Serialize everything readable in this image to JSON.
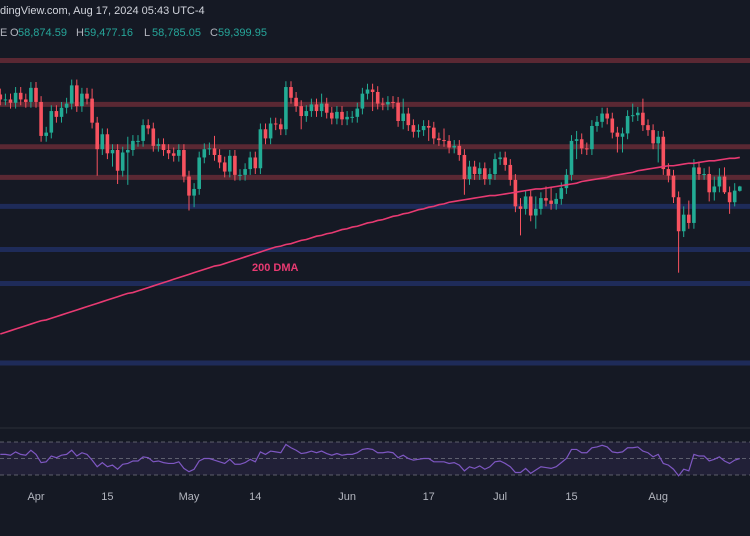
{
  "header": {
    "source": "dingView.com, Aug 17, 2024 05:43 UTC-4",
    "symbol": "E",
    "ohlc": [
      {
        "label": "O",
        "value": "58,874.59"
      },
      {
        "label": "H",
        "value": "59,477.16"
      },
      {
        "label": "L",
        "value": "58,785.05"
      },
      {
        "label": "C",
        "value": "59,399.95"
      }
    ]
  },
  "chart_data": [
    {
      "type": "candlestick",
      "categories": [
        null,
        null,
        null,
        null,
        null,
        null,
        null,
        "Apr",
        null,
        null,
        null,
        null,
        null,
        null,
        null,
        null,
        null,
        null,
        null,
        null,
        null,
        "15",
        null,
        null,
        null,
        null,
        null,
        null,
        null,
        null,
        null,
        null,
        null,
        null,
        null,
        null,
        null,
        "May",
        null,
        null,
        null,
        null,
        null,
        null,
        null,
        null,
        null,
        null,
        null,
        null,
        "14",
        null,
        null,
        null,
        null,
        null,
        null,
        null,
        null,
        null,
        null,
        null,
        null,
        null,
        null,
        null,
        null,
        null,
        "Jun",
        null,
        null,
        null,
        null,
        null,
        null,
        null,
        null,
        null,
        null,
        null,
        null,
        null,
        null,
        null,
        "17",
        null,
        null,
        null,
        null,
        null,
        null,
        null,
        null,
        null,
        null,
        null,
        null,
        null,
        "Jul",
        null,
        null,
        null,
        null,
        null,
        null,
        null,
        null,
        null,
        null,
        null,
        null,
        null,
        "15",
        null,
        null,
        null,
        null,
        null,
        null,
        null,
        null,
        null,
        null,
        null,
        null,
        null,
        null,
        null,
        null,
        "Aug",
        null,
        null,
        null,
        null,
        null,
        null,
        null,
        null,
        null,
        null,
        null,
        null,
        null,
        null,
        null,
        null
      ],
      "open": [
        70500,
        69900,
        69900,
        69500,
        70700,
        69900,
        69600,
        71300,
        69600,
        65500,
        65900,
        68500,
        67800,
        68900,
        69400,
        71600,
        69100,
        70600,
        70000,
        67100,
        63900,
        65700,
        63400,
        63800,
        61300,
        63500,
        63800,
        64900,
        64900,
        66800,
        66400,
        64300,
        64500,
        63800,
        63400,
        63100,
        63800,
        60600,
        58300,
        59100,
        62900,
        63900,
        64000,
        63200,
        62300,
        61200,
        63100,
        60800,
        60800,
        61500,
        62900,
        61600,
        66300,
        65200,
        67000,
        66900,
        66300,
        71400,
        70100,
        69100,
        67900,
        68500,
        69300,
        68500,
        69400,
        68300,
        67600,
        68400,
        67500,
        67800,
        67800,
        68800,
        70600,
        71100,
        70800,
        69400,
        69300,
        69600,
        69500,
        67300,
        68200,
        66800,
        66000,
        66200,
        66700,
        66500,
        65200,
        65000,
        64900,
        64100,
        64300,
        63200,
        60300,
        61800,
        60900,
        61600,
        60300,
        60900,
        62700,
        62900,
        62000,
        60200,
        57000,
        56700,
        58200,
        55900,
        56700,
        58000,
        57700,
        57300,
        57900,
        59200,
        60800,
        64900,
        65100,
        64000,
        63900,
        66700,
        67200,
        68200,
        67600,
        65900,
        65400,
        65800,
        67900,
        68000,
        68300,
        66800,
        66200,
        64600,
        65400,
        61500,
        60700,
        58100,
        54000,
        56000,
        55000,
        61700,
        60900,
        60900,
        58700,
        59400,
        60600,
        58700,
        57500,
        58874.59
      ],
      "high": [
        71200,
        70600,
        70600,
        71400,
        71400,
        70600,
        72000,
        72000,
        70300,
        66600,
        69200,
        69200,
        69600,
        70100,
        72300,
        72300,
        71300,
        71300,
        71200,
        67800,
        66400,
        66400,
        64500,
        64500,
        64200,
        65400,
        65600,
        65600,
        67500,
        67500,
        67100,
        65200,
        65200,
        64500,
        64100,
        64500,
        64500,
        61300,
        59800,
        63600,
        64600,
        64700,
        65500,
        63900,
        63000,
        63800,
        63800,
        61500,
        62200,
        63600,
        63600,
        67000,
        67000,
        67700,
        67700,
        67600,
        72100,
        72100,
        70800,
        69800,
        69200,
        70000,
        70000,
        70600,
        70100,
        69000,
        69100,
        69100,
        68500,
        68500,
        69500,
        71300,
        71800,
        71800,
        71500,
        70100,
        70300,
        70300,
        70200,
        70000,
        68900,
        67500,
        66900,
        67400,
        67400,
        67200,
        65900,
        66400,
        65600,
        65000,
        65000,
        63900,
        62500,
        62500,
        62300,
        62300,
        61600,
        63400,
        63600,
        63600,
        62700,
        60900,
        58000,
        58900,
        58900,
        58200,
        58700,
        59400,
        59300,
        58600,
        59900,
        61500,
        65600,
        66100,
        65800,
        64700,
        67400,
        67900,
        68900,
        68900,
        68300,
        66600,
        66500,
        68600,
        69400,
        69000,
        70000,
        67500,
        66900,
        66100,
        66100,
        62200,
        61400,
        58800,
        57000,
        57700,
        62700,
        62400,
        61600,
        61800,
        60600,
        61600,
        61700,
        59400,
        59800,
        59477.16
      ],
      "low": [
        69200,
        69200,
        68800,
        68800,
        69200,
        68900,
        68900,
        68900,
        64800,
        64800,
        65200,
        67100,
        67100,
        68200,
        68700,
        68400,
        68400,
        69300,
        66400,
        60700,
        63200,
        62700,
        61800,
        59700,
        60600,
        59600,
        63100,
        64200,
        64200,
        65700,
        63600,
        63600,
        63100,
        62700,
        62400,
        62400,
        59900,
        56500,
        56900,
        58400,
        62200,
        63200,
        62500,
        61600,
        60500,
        60500,
        60100,
        60100,
        60100,
        60800,
        60900,
        60900,
        64500,
        64500,
        66200,
        65600,
        65600,
        69400,
        68400,
        66300,
        67200,
        67800,
        67800,
        67800,
        67600,
        66900,
        66900,
        66800,
        66800,
        67100,
        67100,
        68100,
        69900,
        68500,
        68700,
        68600,
        68600,
        68800,
        66600,
        66300,
        66100,
        65300,
        65300,
        65500,
        64900,
        64500,
        64300,
        64200,
        63400,
        63400,
        62500,
        58400,
        59600,
        60200,
        60200,
        59600,
        59600,
        60200,
        62000,
        61300,
        59500,
        56300,
        53500,
        56000,
        55200,
        54300,
        56000,
        57000,
        56600,
        56600,
        57200,
        58500,
        60100,
        62700,
        63300,
        63200,
        63200,
        66000,
        66500,
        66900,
        65200,
        63500,
        63500,
        65100,
        67200,
        67300,
        66100,
        65500,
        63900,
        62300,
        60800,
        59900,
        57400,
        49000,
        53300,
        54300,
        54300,
        60200,
        60200,
        57600,
        57700,
        58700,
        58500,
        56100,
        57000,
        58785.05
      ],
      "close": [
        69900,
        69900,
        69500,
        70700,
        69900,
        69600,
        71300,
        69600,
        65500,
        65900,
        68500,
        67800,
        68900,
        69400,
        71600,
        69100,
        70600,
        70000,
        67100,
        63900,
        65700,
        63400,
        63800,
        61300,
        63500,
        63800,
        64900,
        64900,
        66800,
        66400,
        64300,
        64500,
        63800,
        63400,
        63100,
        63800,
        60600,
        58300,
        59100,
        62900,
        63900,
        64000,
        63200,
        62300,
        61200,
        63100,
        60800,
        60800,
        61500,
        62900,
        61600,
        66300,
        65200,
        67000,
        66900,
        66300,
        71400,
        70100,
        69100,
        67900,
        68500,
        69300,
        68500,
        69400,
        68300,
        67600,
        68400,
        67500,
        67800,
        67800,
        68800,
        70600,
        71100,
        70800,
        69400,
        69300,
        69600,
        69500,
        67300,
        68200,
        66800,
        66000,
        66200,
        66700,
        66500,
        65200,
        65000,
        64900,
        64100,
        64300,
        63200,
        60300,
        61800,
        60900,
        61600,
        60300,
        60900,
        62700,
        62900,
        62000,
        60200,
        57000,
        56700,
        58200,
        55900,
        56700,
        58000,
        57700,
        57300,
        57900,
        59200,
        60800,
        64900,
        65100,
        64000,
        63900,
        66700,
        67200,
        68200,
        67600,
        65900,
        65400,
        65800,
        67900,
        68000,
        68300,
        66800,
        66200,
        64600,
        65400,
        61500,
        60700,
        58100,
        54000,
        56000,
        55000,
        61700,
        60900,
        60900,
        58700,
        59400,
        60600,
        58700,
        57500,
        58900,
        59399.95
      ],
      "up_color": "#22ab94",
      "down_color": "#f7525f",
      "series": [
        {
          "name": "200 DMA",
          "color": "#e83a72",
          "values": [
            41600,
            41800,
            42000,
            42200,
            42400,
            42600,
            42800,
            43000,
            43200,
            43300,
            43500,
            43700,
            43900,
            44100,
            44300,
            44500,
            44700,
            44900,
            45100,
            45300,
            45500,
            45700,
            45900,
            46100,
            46300,
            46500,
            46600,
            46800,
            47000,
            47200,
            47400,
            47600,
            47800,
            48000,
            48200,
            48400,
            48600,
            48800,
            49000,
            49200,
            49400,
            49600,
            49800,
            49900,
            50100,
            50300,
            50500,
            50700,
            50900,
            51100,
            51300,
            51500,
            51700,
            51900,
            52100,
            52200,
            52400,
            52500,
            52700,
            52900,
            53000,
            53200,
            53400,
            53500,
            53700,
            53800,
            54000,
            54200,
            54300,
            54500,
            54600,
            54800,
            55000,
            55100,
            55300,
            55400,
            55600,
            55800,
            55900,
            56100,
            56200,
            56400,
            56600,
            56700,
            56900,
            57000,
            57200,
            57300,
            57500,
            57600,
            57700,
            57800,
            57900,
            58000,
            58100,
            58200,
            58300,
            58300,
            58400,
            58500,
            58600,
            58700,
            58800,
            58900,
            59000,
            59100,
            59100,
            59200,
            59300,
            59400,
            59500,
            59600,
            59700,
            59800,
            60000,
            60100,
            60200,
            60300,
            60400,
            60500,
            60700,
            60800,
            60900,
            61000,
            61100,
            61300,
            61400,
            61500,
            61600,
            61700,
            61800,
            61900,
            61900,
            62000,
            62100,
            62200,
            62200,
            62300,
            62400,
            62500,
            62500,
            62600,
            62700,
            62800,
            62800,
            62900
          ]
        }
      ],
      "levels": [
        {
          "value": 74600,
          "color": "#5a2833"
        },
        {
          "value": 69300,
          "color": "#5a2833"
        },
        {
          "value": 64200,
          "color": "#5a2833"
        },
        {
          "value": 60500,
          "color": "#5a2833"
        },
        {
          "value": 57000,
          "color": "#1e2b59"
        },
        {
          "value": 51800,
          "color": "#1e2b59"
        },
        {
          "value": 47700,
          "color": "#1e2b59"
        },
        {
          "value": 38100,
          "color": "#1e2b59"
        }
      ],
      "ylim": [
        30500,
        81900
      ]
    },
    {
      "type": "line",
      "color": "#7e57c2",
      "values": [
        55,
        55,
        54,
        58,
        55,
        54,
        60,
        55,
        45,
        46,
        53,
        51,
        54,
        55,
        60,
        53,
        57,
        55,
        48,
        40,
        45,
        40,
        42,
        37,
        43,
        44,
        47,
        47,
        52,
        51,
        46,
        47,
        45,
        44,
        44,
        46,
        38,
        34,
        37,
        47,
        50,
        50,
        48,
        46,
        44,
        49,
        43,
        43,
        45,
        49,
        46,
        58,
        55,
        59,
        58,
        57,
        67,
        63,
        60,
        56,
        57,
        59,
        57,
        59,
        56,
        54,
        56,
        54,
        55,
        55,
        57,
        61,
        62,
        61,
        57,
        57,
        58,
        57,
        51,
        54,
        50,
        48,
        49,
        50,
        50,
        46,
        46,
        46,
        44,
        45,
        42,
        35,
        40,
        38,
        41,
        37,
        40,
        46,
        47,
        44,
        40,
        33,
        33,
        38,
        32,
        36,
        40,
        39,
        38,
        40,
        45,
        50,
        61,
        61,
        57,
        57,
        63,
        64,
        66,
        64,
        58,
        57,
        58,
        63,
        63,
        64,
        59,
        57,
        52,
        55,
        44,
        42,
        37,
        29,
        37,
        35,
        55,
        53,
        53,
        47,
        49,
        52,
        47,
        44,
        48,
        50
      ],
      "hlines": [
        70,
        50,
        30
      ],
      "ylim": [
        10,
        90
      ]
    }
  ]
}
